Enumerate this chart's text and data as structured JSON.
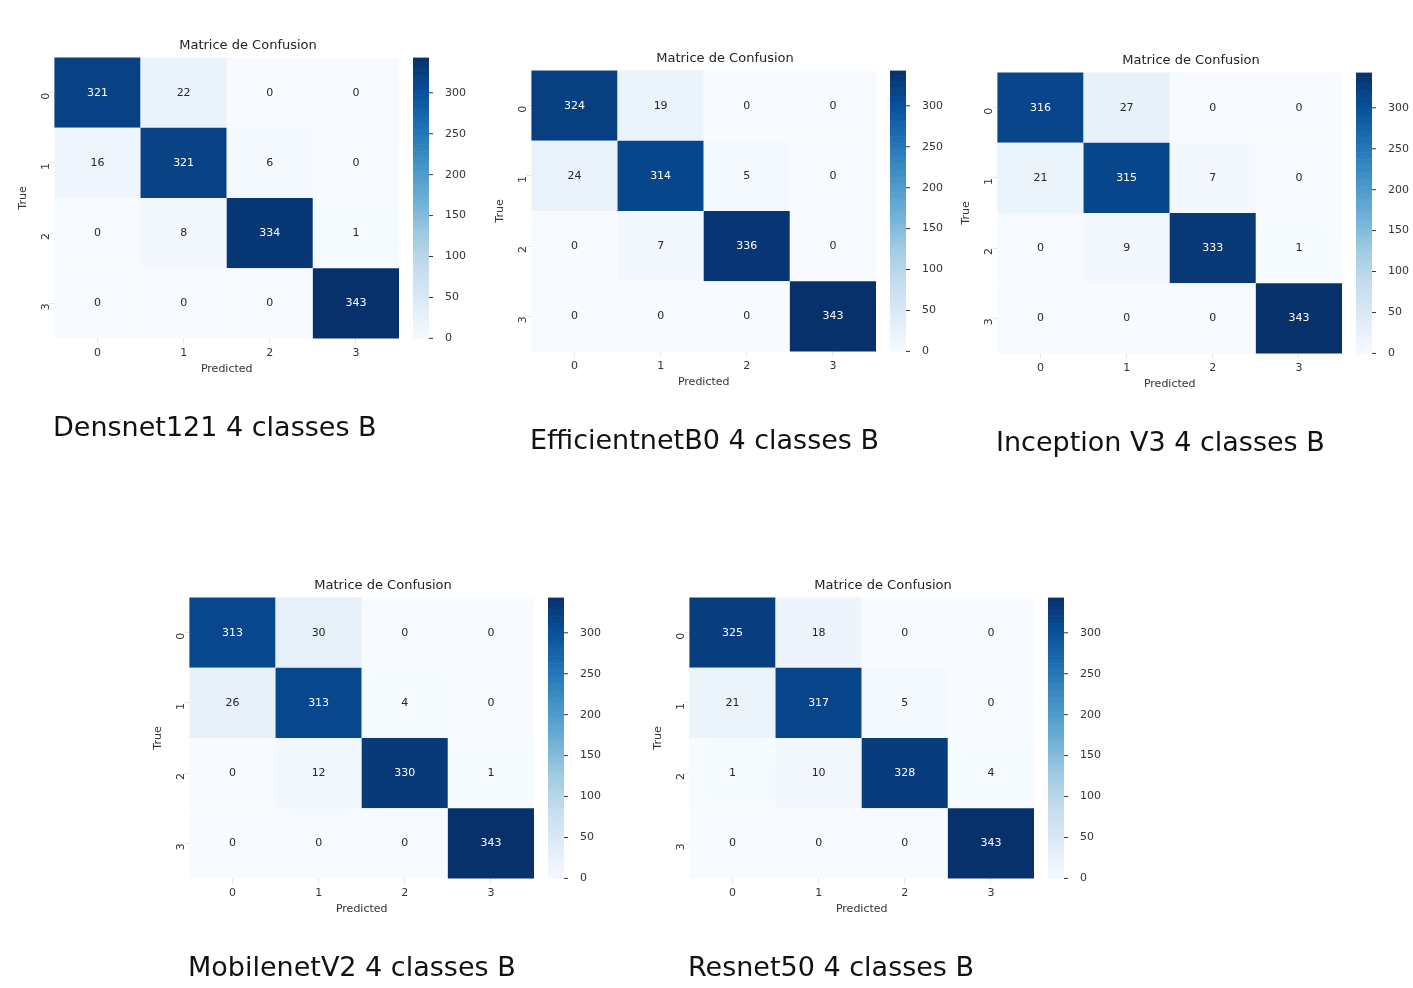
{
  "chart_data": [
    {
      "type": "heatmap",
      "title": "Matrice de Confusion",
      "xlabel": "Predicted",
      "ylabel": "True",
      "categories": [
        "0",
        "1",
        "2",
        "3"
      ],
      "y_categories": [
        "0",
        "1",
        "2",
        "3"
      ],
      "cells": [
        [
          321,
          22,
          0,
          0
        ],
        [
          16,
          321,
          6,
          0
        ],
        [
          0,
          8,
          334,
          1
        ],
        [
          0,
          0,
          0,
          343
        ]
      ],
      "clim": [
        0,
        343
      ],
      "cticks": [
        0,
        50,
        100,
        150,
        200,
        250,
        300
      ],
      "data_labels": true,
      "annotations": [
        "Densnet121 4 classes B"
      ]
    },
    {
      "type": "heatmap",
      "title": "Matrice de Confusion",
      "xlabel": "Predicted",
      "ylabel": "True",
      "categories": [
        "0",
        "1",
        "2",
        "3"
      ],
      "y_categories": [
        "0",
        "1",
        "2",
        "3"
      ],
      "cells": [
        [
          324,
          19,
          0,
          0
        ],
        [
          24,
          314,
          5,
          0
        ],
        [
          0,
          7,
          336,
          0
        ],
        [
          0,
          0,
          0,
          343
        ]
      ],
      "clim": [
        0,
        343
      ],
      "cticks": [
        0,
        50,
        100,
        150,
        200,
        250,
        300
      ],
      "data_labels": true,
      "annotations": [
        "EfficientnetB0 4 classes B"
      ]
    },
    {
      "type": "heatmap",
      "title": "Matrice de Confusion",
      "xlabel": "Predicted",
      "ylabel": "True",
      "categories": [
        "0",
        "1",
        "2",
        "3"
      ],
      "y_categories": [
        "0",
        "1",
        "2",
        "3"
      ],
      "cells": [
        [
          316,
          27,
          0,
          0
        ],
        [
          21,
          315,
          7,
          0
        ],
        [
          0,
          9,
          333,
          1
        ],
        [
          0,
          0,
          0,
          343
        ]
      ],
      "clim": [
        0,
        343
      ],
      "cticks": [
        0,
        50,
        100,
        150,
        200,
        250,
        300
      ],
      "data_labels": true,
      "annotations": [
        "Inception V3 4 classes B"
      ]
    },
    {
      "type": "heatmap",
      "title": "Matrice de Confusion",
      "xlabel": "Predicted",
      "ylabel": "True",
      "categories": [
        "0",
        "1",
        "2",
        "3"
      ],
      "y_categories": [
        "0",
        "1",
        "2",
        "3"
      ],
      "cells": [
        [
          313,
          30,
          0,
          0
        ],
        [
          26,
          313,
          4,
          0
        ],
        [
          0,
          12,
          330,
          1
        ],
        [
          0,
          0,
          0,
          343
        ]
      ],
      "clim": [
        0,
        343
      ],
      "cticks": [
        0,
        50,
        100,
        150,
        200,
        250,
        300
      ],
      "data_labels": true,
      "annotations": [
        "MobilenetV2 4 classes B"
      ]
    },
    {
      "type": "heatmap",
      "title": "Matrice de Confusion",
      "xlabel": "Predicted",
      "ylabel": "True",
      "categories": [
        "0",
        "1",
        "2",
        "3"
      ],
      "y_categories": [
        "0",
        "1",
        "2",
        "3"
      ],
      "cells": [
        [
          325,
          18,
          0,
          0
        ],
        [
          21,
          317,
          5,
          0
        ],
        [
          1,
          10,
          328,
          4
        ],
        [
          0,
          0,
          0,
          343
        ]
      ],
      "clim": [
        0,
        343
      ],
      "cticks": [
        0,
        50,
        100,
        150,
        200,
        250,
        300
      ],
      "data_labels": true,
      "annotations": [
        "Resnet50 4 classes B"
      ]
    }
  ]
}
